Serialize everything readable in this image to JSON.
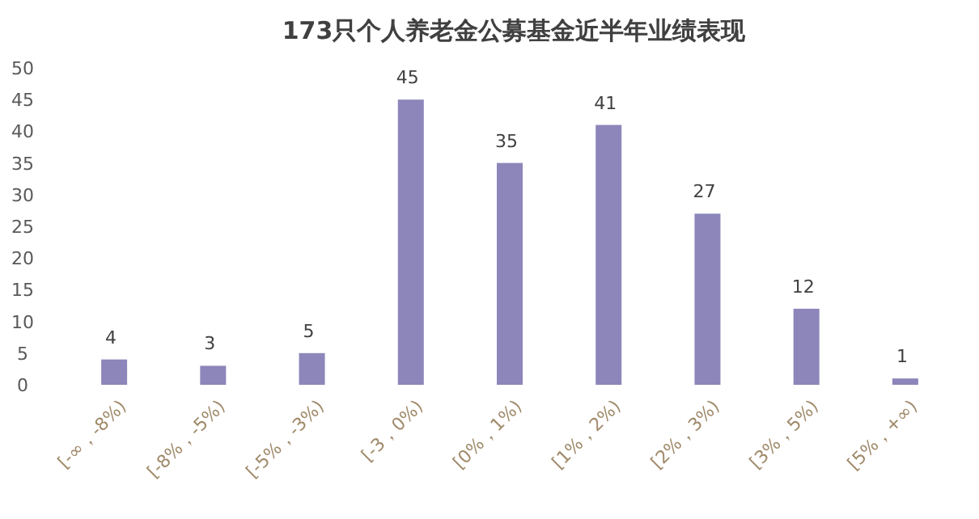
{
  "chart_data": {
    "type": "bar",
    "title": "173只个人养老金公募基金近半年业绩表现",
    "categories": [
      "[-∞，-8%)",
      "[-8%，-5%)",
      "[-5%，-3%)",
      "[-3，0%)",
      "[0%，1%)",
      "[1%，2%)",
      "[2%，3%)",
      "[3%，5%)",
      "[5%，+∞)"
    ],
    "values": [
      4,
      3,
      5,
      45,
      35,
      41,
      27,
      12,
      1
    ],
    "color": "#8c86ba",
    "ylim": [
      0,
      50
    ],
    "yticks": [
      0,
      5,
      10,
      15,
      20,
      25,
      30,
      35,
      40,
      45,
      50
    ],
    "data_labels": true
  }
}
